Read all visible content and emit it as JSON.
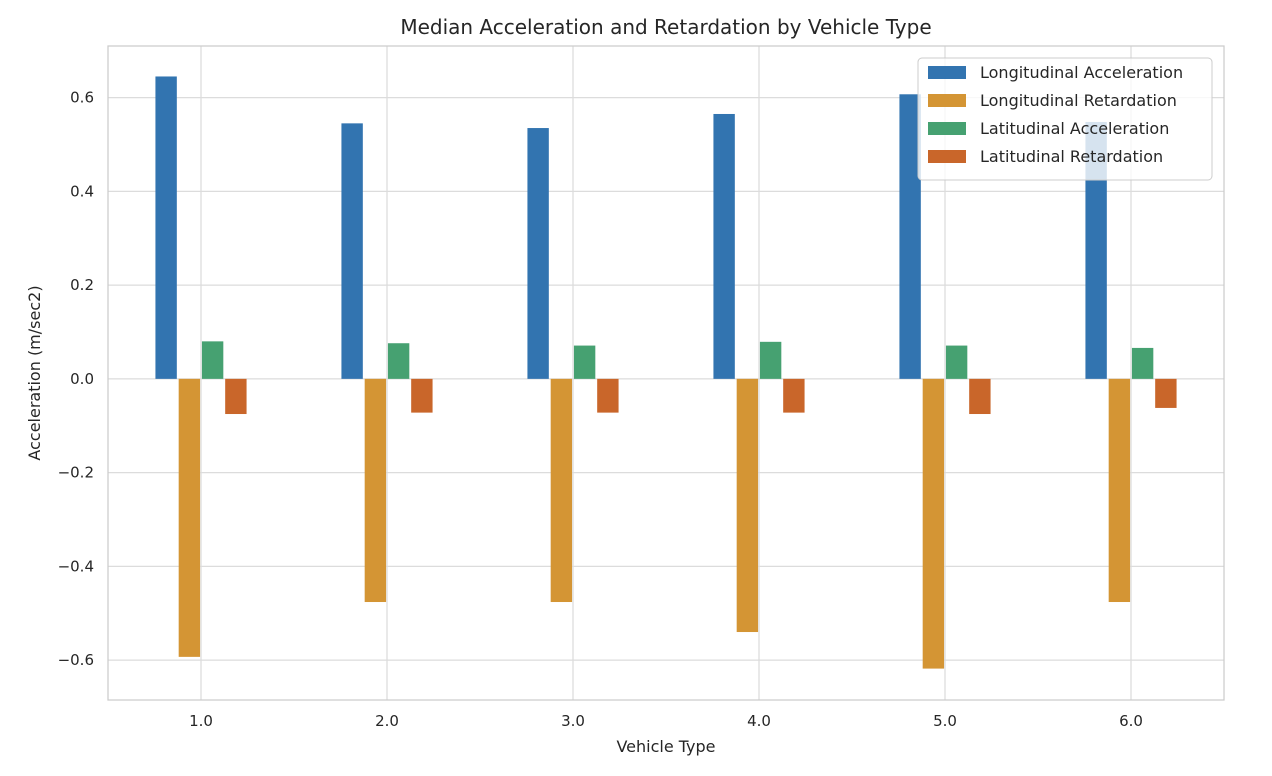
{
  "chart_data": {
    "type": "bar",
    "title": "Median Acceleration and Retardation by Vehicle Type",
    "xlabel": "Vehicle Type",
    "ylabel": "Acceleration (m/sec2)",
    "categories": [
      "1.0",
      "2.0",
      "3.0",
      "4.0",
      "5.0",
      "6.0"
    ],
    "series": [
      {
        "name": "Longitudinal Acceleration",
        "color": "#3274b0",
        "values": [
          0.645,
          0.545,
          0.535,
          0.565,
          0.607,
          0.548
        ]
      },
      {
        "name": "Longitudinal Retardation",
        "color": "#d49534",
        "values": [
          -0.593,
          -0.476,
          -0.476,
          -0.54,
          -0.618,
          -0.476
        ]
      },
      {
        "name": "Latitudinal Acceleration",
        "color": "#46a171",
        "values": [
          0.08,
          0.076,
          0.071,
          0.079,
          0.071,
          0.066
        ]
      },
      {
        "name": "Latitudinal Retardation",
        "color": "#c9662a",
        "values": [
          -0.075,
          -0.072,
          -0.072,
          -0.072,
          -0.075,
          -0.062
        ]
      }
    ],
    "ylim": [
      -0.685,
      0.71
    ],
    "yticks": [
      -0.6,
      -0.4,
      -0.2,
      0.0,
      0.2,
      0.4,
      0.6
    ],
    "ytick_labels": [
      "−0.6",
      "−0.4",
      "−0.2",
      "0.0",
      "0.2",
      "0.4",
      "0.6"
    ],
    "grid": true,
    "legend_position": "top-right"
  }
}
